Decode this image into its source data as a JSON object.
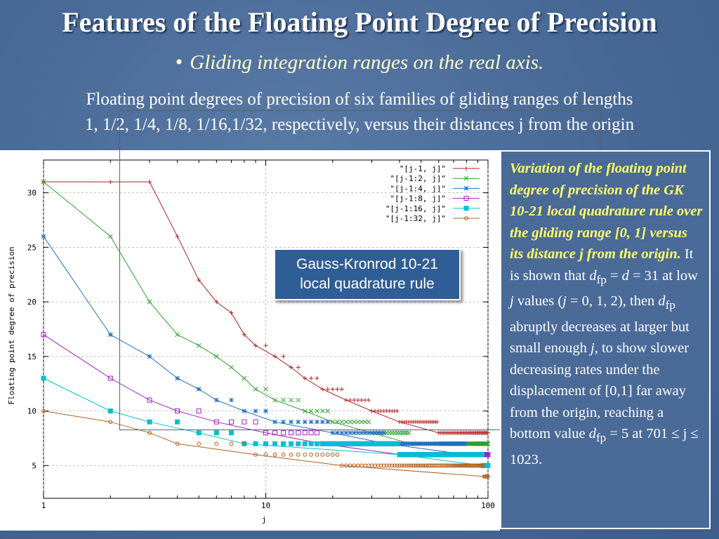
{
  "slide": {
    "title": "Features of the Floating Point Degree of Precision",
    "bullet": "Gliding integration ranges on the real axis.",
    "description_line1": "Floating point degrees of precision of six families of gliding ranges of lengths",
    "description_line2": "1, 1/2, 1/4, 1/8, 1/16,1/32, respectively, versus their distances j from the origin"
  },
  "callout": {
    "line1": "Gauss-Kronrod 10-21",
    "line2": "local quadrature rule"
  },
  "sidebar": {
    "highlight": "Variation of the floating point degree of precision of the GK 10-21 local quadrature rule over the gliding range [0, 1] versus its distance j from the origin.",
    "t1": " It is shown that ",
    "d": "d",
    "fp": "fp",
    "t2": " = ",
    "t3": " = 31 at low ",
    "j": "j",
    "t4": " values (",
    "t5": " = 0, 1, 2), then ",
    "t6": " abruptly decreases at larger but small enough ",
    "t7": ", to show slower decreasing rates under the displacement of [0,1] far away from the origin, reaching a bottom value ",
    "t8": " = 5 at 701 ≤  j ≤ 1023."
  },
  "chart_data": {
    "type": "line",
    "xlabel": "j",
    "ylabel": "Floating point degree of precision",
    "xscale": "log",
    "xlim": [
      1,
      100
    ],
    "ylim": [
      2,
      33
    ],
    "xticks": [
      "1",
      "10",
      "100"
    ],
    "yticks": [
      "5",
      "10",
      "15",
      "20",
      "25",
      "30"
    ],
    "grid": true,
    "legend_position": "top-right",
    "series": [
      {
        "name": "\"[j-1,  j]\"",
        "color": "#b22222",
        "marker": "plus",
        "steps": [
          [
            1,
            31
          ],
          [
            3,
            31
          ],
          [
            4,
            26
          ],
          [
            5,
            22
          ],
          [
            6,
            20
          ],
          [
            7,
            19
          ],
          [
            8,
            17
          ],
          [
            9,
            16
          ],
          [
            11,
            15
          ],
          [
            13,
            14
          ],
          [
            15,
            13
          ],
          [
            18,
            12
          ],
          [
            23,
            11
          ],
          [
            30,
            10
          ],
          [
            40,
            9
          ],
          [
            60,
            8
          ],
          [
            100,
            8
          ]
        ]
      },
      {
        "name": "\"[j-1:2,  j]\"",
        "color": "#2ca02c",
        "marker": "x",
        "steps": [
          [
            1,
            31
          ],
          [
            2,
            26
          ],
          [
            3,
            20
          ],
          [
            4,
            17
          ],
          [
            5,
            16
          ],
          [
            6,
            15
          ],
          [
            7,
            14
          ],
          [
            8,
            13
          ],
          [
            9,
            12
          ],
          [
            11,
            11
          ],
          [
            15,
            10
          ],
          [
            20,
            9
          ],
          [
            30,
            8
          ],
          [
            45,
            7
          ],
          [
            100,
            7
          ]
        ]
      },
      {
        "name": "\"[j-1:4,  j]\"",
        "color": "#1f6fc0",
        "marker": "star",
        "steps": [
          [
            1,
            26
          ],
          [
            2,
            17
          ],
          [
            3,
            15
          ],
          [
            4,
            13
          ],
          [
            5,
            12
          ],
          [
            6,
            11
          ],
          [
            8,
            10
          ],
          [
            11,
            9
          ],
          [
            20,
            8
          ],
          [
            35,
            7
          ],
          [
            80,
            6
          ],
          [
            100,
            6
          ]
        ]
      },
      {
        "name": "\"[j-1:8,  j]\"",
        "color": "#a020c0",
        "marker": "square-open",
        "steps": [
          [
            1,
            17
          ],
          [
            2,
            13
          ],
          [
            3,
            11
          ],
          [
            4,
            10
          ],
          [
            6,
            9
          ],
          [
            10,
            8
          ],
          [
            18,
            7
          ],
          [
            40,
            6
          ],
          [
            100,
            6
          ]
        ]
      },
      {
        "name": "\"[j-1:16,  j]\"",
        "color": "#00c0d0",
        "marker": "square-filled",
        "steps": [
          [
            1,
            13
          ],
          [
            2,
            10
          ],
          [
            3,
            9
          ],
          [
            5,
            8
          ],
          [
            8,
            7
          ],
          [
            40,
            6
          ],
          [
            95,
            5
          ],
          [
            100,
            5
          ]
        ]
      },
      {
        "name": "\"[j-1:32,  j]\"",
        "color": "#b06020",
        "marker": "circle",
        "steps": [
          [
            1,
            10
          ],
          [
            2,
            9
          ],
          [
            3,
            8
          ],
          [
            4,
            7
          ],
          [
            9,
            6
          ],
          [
            22,
            5
          ],
          [
            96,
            4
          ],
          [
            100,
            4
          ]
        ]
      }
    ]
  }
}
